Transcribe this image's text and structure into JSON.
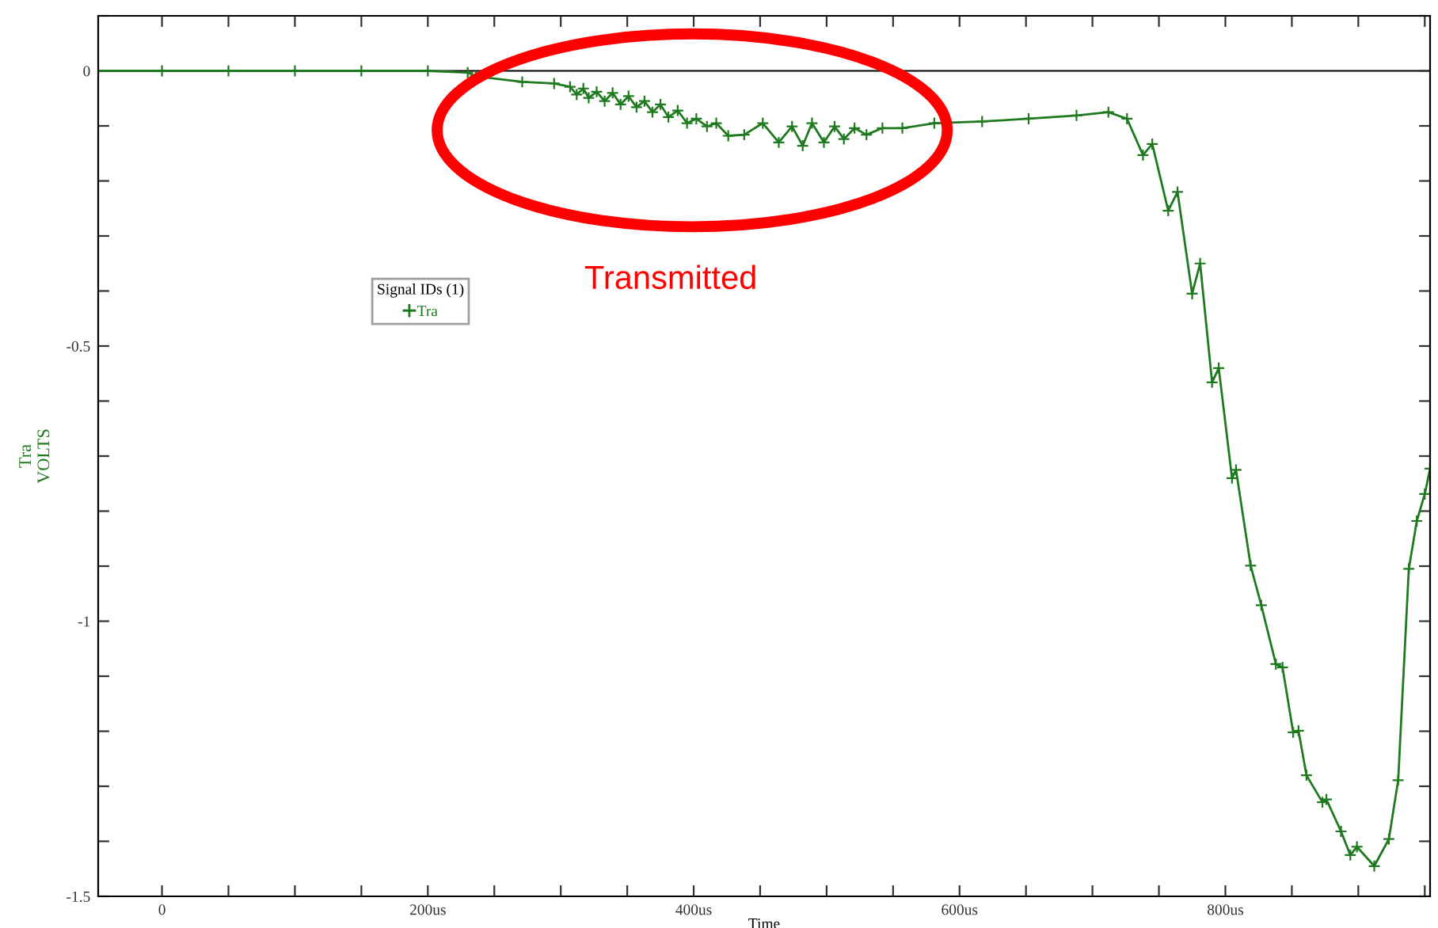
{
  "chart_data": {
    "type": "line",
    "xlabel": "Time",
    "ylabel": "Tra\nVOLTS",
    "legend_title": "Signal IDs (1)",
    "legend": "top left",
    "marker": "cross",
    "grid": false,
    "xlim": [
      -48,
      954
    ],
    "ylim": [
      -1.5,
      0.1
    ],
    "xticks": [
      {
        "value": 0,
        "label": "0"
      },
      {
        "value": 50,
        "label": null
      },
      {
        "value": 100,
        "label": null
      },
      {
        "value": 150,
        "label": null
      },
      {
        "value": 200,
        "label": "200us"
      },
      {
        "value": 250,
        "label": null
      },
      {
        "value": 300,
        "label": null
      },
      {
        "value": 350,
        "label": null
      },
      {
        "value": 400,
        "label": "400us"
      },
      {
        "value": 450,
        "label": null
      },
      {
        "value": 500,
        "label": null
      },
      {
        "value": 550,
        "label": null
      },
      {
        "value": 600,
        "label": "600us"
      },
      {
        "value": 650,
        "label": null
      },
      {
        "value": 700,
        "label": null
      },
      {
        "value": 750,
        "label": null
      },
      {
        "value": 800,
        "label": "800us"
      },
      {
        "value": 850,
        "label": null
      },
      {
        "value": 900,
        "label": null
      },
      {
        "value": 950,
        "label": null
      }
    ],
    "yticks": [
      {
        "value": -1.5,
        "label": "-1.5"
      },
      {
        "value": -1.4,
        "label": null
      },
      {
        "value": -1.3,
        "label": null
      },
      {
        "value": -1.2,
        "label": null
      },
      {
        "value": -1.1,
        "label": null
      },
      {
        "value": -1,
        "label": "-1"
      },
      {
        "value": -0.9,
        "label": null
      },
      {
        "value": -0.8,
        "label": null
      },
      {
        "value": -0.7,
        "label": null
      },
      {
        "value": -0.6,
        "label": null
      },
      {
        "value": -0.5,
        "label": "-0.5"
      },
      {
        "value": -0.4,
        "label": null
      },
      {
        "value": -0.3,
        "label": null
      },
      {
        "value": -0.2,
        "label": null
      },
      {
        "value": -0.1,
        "label": null
      },
      {
        "value": 0,
        "label": "0"
      },
      {
        "value": 0.1,
        "label": null
      }
    ],
    "ref_lines": [
      {
        "axis": "y",
        "value": 0,
        "color": "#000000"
      }
    ],
    "annotations": [
      "Transmitted"
    ],
    "series": [
      {
        "name": "Tra",
        "color": "#1f7a1f",
        "x": [
          -48,
          0,
          50,
          100,
          150,
          200,
          230,
          236,
          271,
          295,
          307,
          312,
          317,
          321,
          327,
          333,
          339,
          345,
          351,
          357,
          363,
          369,
          375,
          381,
          388,
          395,
          402,
          410,
          417,
          426,
          438,
          452,
          464,
          474,
          482,
          489,
          498,
          506,
          513,
          521,
          530,
          542,
          557,
          581,
          617,
          652,
          688,
          712,
          726,
          738,
          745,
          757,
          764,
          775,
          781,
          790,
          795,
          805,
          808,
          819,
          827,
          838,
          843,
          851,
          855,
          861,
          873,
          876,
          887,
          894,
          899,
          912,
          923,
          930,
          938,
          944,
          950,
          954
        ],
        "values": [
          0,
          0,
          0,
          0,
          0,
          0,
          -0.003,
          -0.01,
          -0.02,
          -0.023,
          -0.029,
          -0.043,
          -0.032,
          -0.049,
          -0.038,
          -0.055,
          -0.04,
          -0.061,
          -0.046,
          -0.066,
          -0.055,
          -0.075,
          -0.061,
          -0.084,
          -0.072,
          -0.095,
          -0.087,
          -0.101,
          -0.095,
          -0.118,
          -0.116,
          -0.095,
          -0.13,
          -0.101,
          -0.136,
          -0.095,
          -0.13,
          -0.101,
          -0.124,
          -0.104,
          -0.116,
          -0.104,
          -0.104,
          -0.095,
          -0.092,
          -0.087,
          -0.081,
          -0.075,
          -0.087,
          -0.153,
          -0.133,
          -0.254,
          -0.22,
          -0.405,
          -0.35,
          -0.566,
          -0.54,
          -0.74,
          -0.725,
          -0.899,
          -0.971,
          -1.078,
          -1.084,
          -1.202,
          -1.199,
          -1.28,
          -1.329,
          -1.324,
          -1.382,
          -1.425,
          -1.41,
          -1.445,
          -1.396,
          -1.289,
          -0.905,
          -0.818,
          -0.769,
          -0.723
        ]
      }
    ]
  }
}
